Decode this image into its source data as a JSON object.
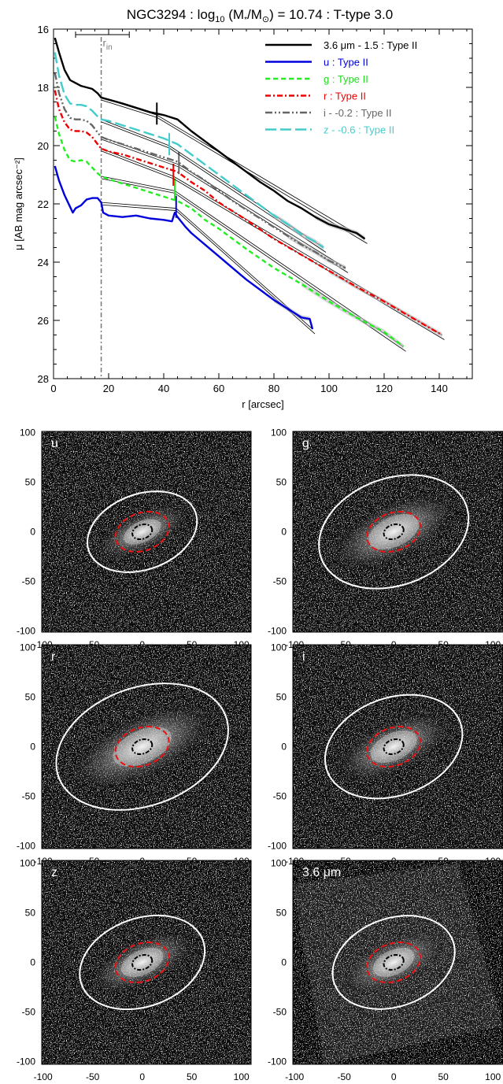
{
  "chart_data": {
    "type": "line",
    "title": "NGC3294 : log₁₀ (M*/M⊙) = 10.74 : T-type 3.0",
    "xlabel": "r [arcsec]",
    "ylabel": "μ [AB mag arcsec⁻²]",
    "xlim": [
      0,
      152
    ],
    "ylim": [
      28,
      16
    ],
    "x_ticks": [
      0,
      20,
      40,
      60,
      80,
      100,
      120,
      140
    ],
    "y_ticks": [
      16,
      18,
      20,
      22,
      24,
      26,
      28
    ],
    "r_in_label": "r",
    "r_in_sub": "in",
    "r_in_value": 17.3,
    "r_in_bar": [
      8,
      27.5
    ],
    "series": [
      {
        "name": "3.6 μm - 1.5 : Type II",
        "color": "#000000",
        "dash": "solid",
        "x": [
          0.5,
          2,
          4,
          6,
          8,
          10,
          12,
          14,
          16,
          17.3,
          20,
          25,
          30,
          35,
          40,
          45,
          50,
          55,
          60,
          65,
          70,
          75,
          80,
          85,
          90,
          95,
          100,
          105,
          110,
          113
        ],
        "y": [
          16.3,
          16.8,
          17.4,
          17.75,
          17.85,
          17.95,
          18.0,
          18.05,
          18.2,
          18.35,
          18.42,
          18.55,
          18.7,
          18.85,
          18.95,
          19.1,
          19.5,
          19.85,
          20.2,
          20.55,
          20.9,
          21.25,
          21.55,
          21.9,
          22.15,
          22.45,
          22.7,
          22.85,
          23.0,
          23.2
        ],
        "break_r": 37.5,
        "break_mu": 18.9
      },
      {
        "name": "u : Type II",
        "color": "#0000dd",
        "dash": "solid",
        "x": [
          0.5,
          2,
          4,
          6,
          7,
          8,
          10,
          12,
          14,
          16,
          17.3,
          18,
          20,
          25,
          30,
          35,
          40,
          43,
          44,
          45,
          48,
          50,
          55,
          60,
          65,
          70,
          75,
          80,
          85,
          90,
          93,
          94
        ],
        "y": [
          20.7,
          21.2,
          21.7,
          22.1,
          22.3,
          22.15,
          22.05,
          21.85,
          21.8,
          21.8,
          21.95,
          22.3,
          22.4,
          22.45,
          22.4,
          22.5,
          22.55,
          22.6,
          22.3,
          22.45,
          22.8,
          23.0,
          23.4,
          23.8,
          24.2,
          24.6,
          24.95,
          25.3,
          25.6,
          25.9,
          25.95,
          26.3
        ],
        "break_r": 44.5,
        "break_mu": 22.1
      },
      {
        "name": "g : Type II",
        "color": "#22ee22",
        "dash": "6,4",
        "x": [
          0.5,
          2,
          4,
          6,
          8,
          10,
          12,
          14,
          16,
          17.3,
          20,
          25,
          30,
          35,
          40,
          45,
          50,
          55,
          60,
          70,
          80,
          90,
          100,
          110,
          120,
          127
        ],
        "y": [
          19.0,
          19.6,
          20.15,
          20.5,
          20.55,
          20.5,
          20.55,
          20.75,
          20.95,
          21.05,
          21.15,
          21.3,
          21.45,
          21.6,
          21.75,
          21.9,
          22.15,
          22.55,
          22.85,
          23.55,
          24.2,
          24.75,
          25.35,
          25.9,
          26.4,
          26.9
        ],
        "break_r": 44,
        "break_mu": 21.5
      },
      {
        "name": "r : Type II",
        "color": "#ee0000",
        "dash": "7,3,2,3",
        "x": [
          0.5,
          2,
          4,
          6,
          8,
          10,
          12,
          14,
          16,
          17.3,
          20,
          25,
          30,
          35,
          40,
          45,
          50,
          55,
          60,
          70,
          80,
          90,
          100,
          110,
          120,
          130,
          141
        ],
        "y": [
          18.1,
          18.75,
          19.2,
          19.45,
          19.5,
          19.5,
          19.55,
          19.7,
          19.95,
          20.1,
          20.2,
          20.3,
          20.45,
          20.6,
          20.75,
          20.9,
          21.25,
          21.55,
          21.95,
          22.55,
          23.2,
          23.75,
          24.3,
          24.85,
          25.35,
          25.9,
          26.5
        ],
        "break_r": 43.5,
        "break_mu": 21.0
      },
      {
        "name": "i - -0.2 : Type II",
        "color": "#666666",
        "dash": "9,3,2,3,2,3",
        "x": [
          0.5,
          2,
          4,
          6,
          8,
          10,
          12,
          14,
          16,
          17.3,
          20,
          25,
          30,
          35,
          40,
          45,
          50,
          55,
          60,
          65,
          70,
          75,
          80,
          85,
          90,
          95,
          100,
          106
        ],
        "y": [
          17.5,
          18.2,
          18.75,
          19.05,
          19.1,
          19.1,
          19.15,
          19.3,
          19.55,
          19.7,
          19.8,
          19.95,
          20.1,
          20.25,
          20.4,
          20.55,
          20.9,
          21.2,
          21.55,
          21.9,
          22.2,
          22.5,
          22.8,
          23.1,
          23.4,
          23.65,
          23.95,
          24.2
        ],
        "break_r": 45.5,
        "break_mu": 20.6
      },
      {
        "name": "z - -0.6 : Type II",
        "color": "#44cccc",
        "dash": "14,5",
        "x": [
          0.5,
          2,
          4,
          6,
          8,
          10,
          12,
          14,
          16,
          17.3,
          20,
          25,
          30,
          35,
          40,
          45,
          50,
          55,
          60,
          65,
          70,
          75,
          80,
          85,
          90,
          95,
          98
        ],
        "y": [
          16.8,
          17.6,
          18.25,
          18.55,
          18.6,
          18.6,
          18.65,
          18.8,
          19.0,
          19.1,
          19.15,
          19.3,
          19.45,
          19.6,
          19.75,
          19.95,
          20.3,
          20.65,
          21.0,
          21.35,
          21.7,
          22.05,
          22.4,
          22.7,
          23.05,
          23.3,
          23.5
        ],
        "break_r": 42,
        "break_mu": 19.95
      }
    ]
  },
  "image_panels": {
    "x_ticks": [
      -100,
      -50,
      0,
      50,
      100
    ],
    "y_ticks": [
      100,
      50,
      0,
      -50,
      -100
    ],
    "panels": [
      {
        "label": "u"
      },
      {
        "label": "g"
      },
      {
        "label": "r"
      },
      {
        "label": "i"
      },
      {
        "label": "z"
      },
      {
        "label": "3.6 μm"
      }
    ]
  }
}
